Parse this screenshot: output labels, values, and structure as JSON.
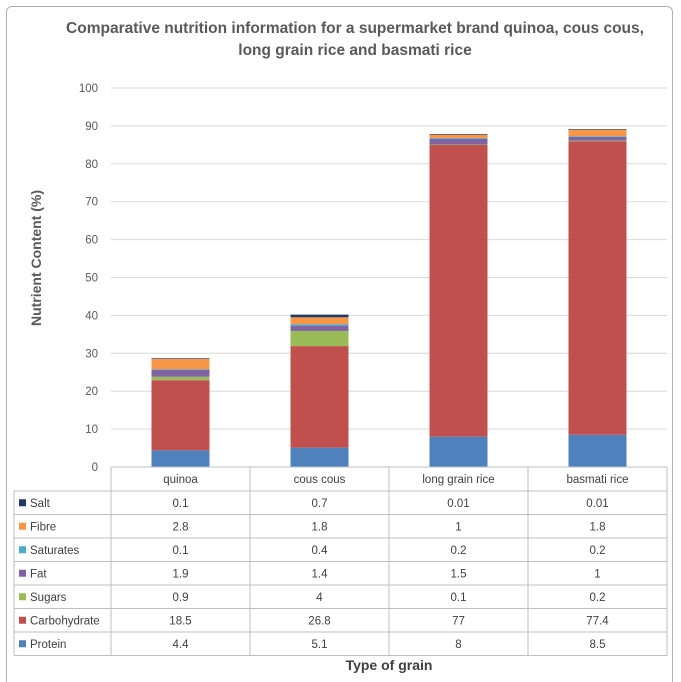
{
  "chart_data": {
    "type": "bar",
    "stacked": true,
    "title": "Comparative nutrition information for a supermarket brand quinoa, cous cous, long grain rice and basmati rice",
    "xlabel": "Type of grain",
    "ylabel": "Nutrient Content (%)",
    "ylim": [
      0,
      100
    ],
    "yticks": [
      0,
      10,
      20,
      30,
      40,
      50,
      60,
      70,
      80,
      90,
      100
    ],
    "grid": true,
    "categories": [
      "quinoa",
      "cous cous",
      "long grain rice",
      "basmati rice"
    ],
    "series": [
      {
        "name": "Protein",
        "color": "#4f81bd",
        "values": [
          4.4,
          5.1,
          8,
          8.5
        ]
      },
      {
        "name": "Carbohydrate",
        "color": "#c0504d",
        "values": [
          18.5,
          26.8,
          77,
          77.4
        ]
      },
      {
        "name": "Sugars",
        "color": "#9bbb59",
        "values": [
          0.9,
          4,
          0.1,
          0.2
        ]
      },
      {
        "name": "Fat",
        "color": "#8064a2",
        "values": [
          1.9,
          1.4,
          1.5,
          1
        ]
      },
      {
        "name": "Saturates",
        "color": "#4bacc6",
        "values": [
          0.1,
          0.4,
          0.2,
          0.2
        ]
      },
      {
        "name": "Fibre",
        "color": "#f79646",
        "values": [
          2.8,
          1.8,
          1,
          1.8
        ]
      },
      {
        "name": "Salt",
        "color": "#1f3864",
        "values": [
          0.1,
          0.7,
          0.01,
          0.01
        ]
      }
    ],
    "table_rows": [
      {
        "name": "Salt",
        "cells": [
          "0.1",
          "0.7",
          "0.01",
          "0.01"
        ]
      },
      {
        "name": "Fibre",
        "cells": [
          "2.8",
          "1.8",
          "1",
          "1.8"
        ]
      },
      {
        "name": "Saturates",
        "cells": [
          "0.1",
          "0.4",
          "0.2",
          "0.2"
        ]
      },
      {
        "name": "Fat",
        "cells": [
          "1.9",
          "1.4",
          "1.5",
          "1"
        ]
      },
      {
        "name": "Sugars",
        "cells": [
          "0.9",
          "4",
          "0.1",
          "0.2"
        ]
      },
      {
        "name": "Carbohydrate",
        "cells": [
          "18.5",
          "26.8",
          "77",
          "77.4"
        ]
      },
      {
        "name": "Protein",
        "cells": [
          "4.4",
          "5.1",
          "8",
          "8.5"
        ]
      }
    ]
  }
}
